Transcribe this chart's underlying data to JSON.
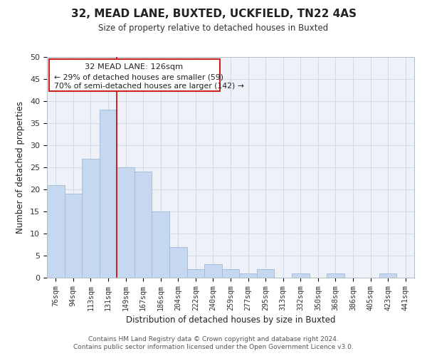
{
  "title": "32, MEAD LANE, BUXTED, UCKFIELD, TN22 4AS",
  "subtitle": "Size of property relative to detached houses in Buxted",
  "xlabel": "Distribution of detached houses by size in Buxted",
  "ylabel": "Number of detached properties",
  "footer_line1": "Contains HM Land Registry data © Crown copyright and database right 2024.",
  "footer_line2": "Contains public sector information licensed under the Open Government Licence v3.0.",
  "bar_labels": [
    "76sqm",
    "94sqm",
    "113sqm",
    "131sqm",
    "149sqm",
    "167sqm",
    "186sqm",
    "204sqm",
    "222sqm",
    "240sqm",
    "259sqm",
    "277sqm",
    "295sqm",
    "313sqm",
    "332sqm",
    "350sqm",
    "368sqm",
    "386sqm",
    "405sqm",
    "423sqm",
    "441sqm"
  ],
  "bar_values": [
    21,
    19,
    27,
    38,
    25,
    24,
    15,
    7,
    2,
    3,
    2,
    1,
    2,
    0,
    1,
    0,
    1,
    0,
    0,
    1,
    0
  ],
  "bar_color": "#c5d8f0",
  "bar_edge_color": "#a0b8d8",
  "vline_color": "#cc0000",
  "ylim": [
    0,
    50
  ],
  "yticks": [
    0,
    5,
    10,
    15,
    20,
    25,
    30,
    35,
    40,
    45,
    50
  ],
  "annotation_title": "32 MEAD LANE: 126sqm",
  "annotation_line1": "← 29% of detached houses are smaller (59)",
  "annotation_line2": "70% of semi-detached houses are larger (142) →",
  "grid_color": "#d0dce8",
  "bg_color": "#eef2f8"
}
